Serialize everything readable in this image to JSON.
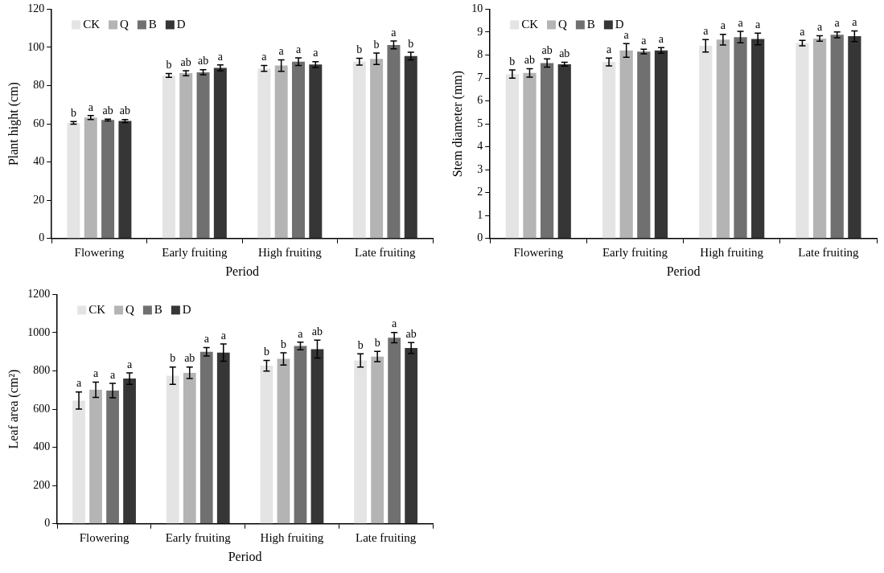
{
  "chart_data": [
    {
      "type": "bar",
      "xlabel": "Period",
      "ylabel": "Plant hight (cm)",
      "categories": [
        "Flowering",
        "Early fruiting",
        "High fruiting",
        "Late fruiting"
      ],
      "ylim": [
        0,
        120
      ],
      "yticks": [
        0,
        20,
        40,
        60,
        80,
        100,
        120
      ],
      "grid": false,
      "legend": "top left",
      "series": [
        {
          "name": "CK",
          "color": "#e4e4e4",
          "values": [
            60.5,
            85.3,
            89,
            92.5
          ],
          "errors": [
            0.7,
            1,
            1.5,
            1.8
          ],
          "value_labels": [
            "b",
            "b",
            "a",
            "b"
          ]
        },
        {
          "name": "Q",
          "color": "#b4b4b4",
          "values": [
            63.3,
            86.5,
            90.5,
            94
          ],
          "errors": [
            1,
            1.3,
            3,
            3
          ],
          "value_labels": [
            "a",
            "ab",
            "a",
            "b"
          ]
        },
        {
          "name": "B",
          "color": "#707070",
          "values": [
            62,
            87,
            92.5,
            101.3
          ],
          "errors": [
            0.5,
            1.3,
            2,
            2
          ],
          "value_labels": [
            "ab",
            "ab",
            "a",
            "a"
          ]
        },
        {
          "name": "D",
          "color": "#363636",
          "values": [
            61.5,
            89.3,
            91,
            95.5
          ],
          "errors": [
            0.8,
            1.5,
            1.5,
            2
          ],
          "value_labels": [
            "ab",
            "a",
            "a",
            "b"
          ]
        }
      ]
    },
    {
      "type": "bar",
      "xlabel": "Period",
      "ylabel": "Stem diameter (mm)",
      "categories": [
        "Flowering",
        "Early fruiting",
        "High fruiting",
        "Late fruiting"
      ],
      "ylim": [
        0,
        10
      ],
      "yticks": [
        0,
        1,
        2,
        3,
        4,
        5,
        6,
        7,
        8,
        9,
        10
      ],
      "grid": false,
      "legend": "top left",
      "series": [
        {
          "name": "CK",
          "color": "#e4e4e4",
          "values": [
            7.17,
            7.7,
            8.4,
            8.52
          ],
          "errors": [
            0.18,
            0.17,
            0.27,
            0.12
          ],
          "value_labels": [
            "b",
            "a",
            "a",
            "a"
          ]
        },
        {
          "name": "Q",
          "color": "#b4b4b4",
          "values": [
            7.22,
            8.2,
            8.67,
            8.72
          ],
          "errors": [
            0.18,
            0.3,
            0.23,
            0.12
          ],
          "value_labels": [
            "ab",
            "a",
            "a",
            "a"
          ]
        },
        {
          "name": "B",
          "color": "#707070",
          "values": [
            7.65,
            8.15,
            8.78,
            8.88
          ],
          "errors": [
            0.18,
            0.1,
            0.25,
            0.13
          ],
          "value_labels": [
            "ab",
            "a",
            "a",
            "a"
          ]
        },
        {
          "name": "D",
          "color": "#363636",
          "values": [
            7.6,
            8.2,
            8.7,
            8.82
          ],
          "errors": [
            0.08,
            0.12,
            0.25,
            0.23
          ],
          "value_labels": [
            "ab",
            "a",
            "a",
            "a"
          ]
        }
      ]
    },
    {
      "type": "bar",
      "xlabel": "Period",
      "ylabel": "Leaf area (cm²)",
      "categories": [
        "Flowering",
        "Early fruiting",
        "High fruiting",
        "Late fruiting"
      ],
      "ylim": [
        0,
        1200
      ],
      "yticks": [
        0,
        200,
        400,
        600,
        800,
        1000,
        1200
      ],
      "grid": false,
      "legend": "top left",
      "series": [
        {
          "name": "CK",
          "color": "#e4e4e4",
          "values": [
            645,
            775,
            827,
            855
          ],
          "errors": [
            45,
            45,
            28,
            35
          ],
          "value_labels": [
            "a",
            "b",
            "b",
            "b"
          ]
        },
        {
          "name": "Q",
          "color": "#b4b4b4",
          "values": [
            701,
            790,
            863,
            875
          ],
          "errors": [
            40,
            30,
            32,
            27
          ],
          "value_labels": [
            "a",
            "ab",
            "b",
            "b"
          ]
        },
        {
          "name": "B",
          "color": "#707070",
          "values": [
            697,
            900,
            930,
            974
          ],
          "errors": [
            38,
            22,
            20,
            27
          ],
          "value_labels": [
            "a",
            "a",
            "a",
            "a"
          ]
        },
        {
          "name": "D",
          "color": "#363636",
          "values": [
            760,
            896,
            914,
            920
          ],
          "errors": [
            30,
            45,
            47,
            28
          ],
          "value_labels": [
            "a",
            "a",
            "ab",
            "ab"
          ]
        }
      ]
    }
  ]
}
